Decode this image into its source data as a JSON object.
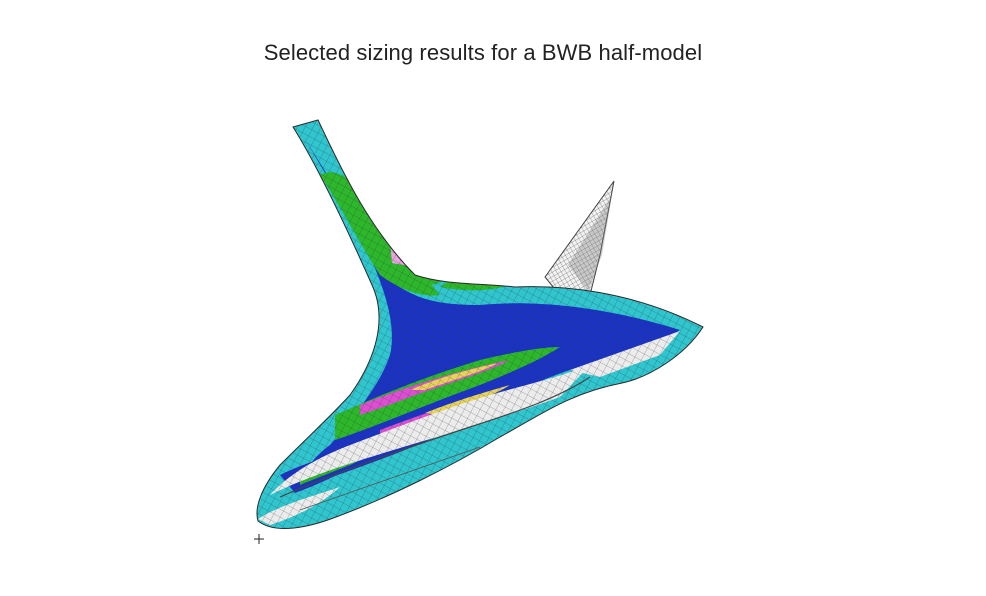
{
  "slide": {
    "title": "Selected sizing results for a BWB half-model"
  },
  "figure": {
    "subject": "blended-wing-body half-model finite element mesh",
    "colors": {
      "mesh_unsized": "#ececec",
      "thin": "#2fc6cf",
      "light": "#1b33c4",
      "medium": "#2db82c",
      "heavy": "#dd4fd2",
      "heavier": "#e5d35a",
      "heaviest": "#d8332a",
      "special": "#e8a5df",
      "mesh_line": "#333333"
    }
  }
}
